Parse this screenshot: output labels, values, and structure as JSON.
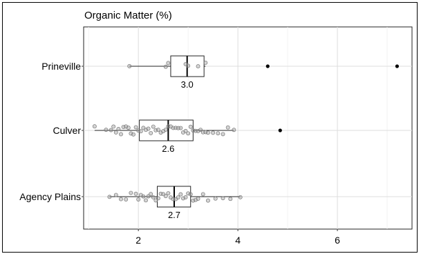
{
  "chart_data": {
    "type": "boxplot",
    "title": "Organic Matter (%)",
    "xlabel": "",
    "ylabel": "",
    "xlim": [
      0.9,
      7.5
    ],
    "xticks": [
      2,
      4,
      6
    ],
    "xtick_labels": [
      "2",
      "4",
      "6"
    ],
    "grid": true,
    "categories": [
      "Prineville",
      "Culver",
      "Agency Plains"
    ],
    "series": [
      {
        "label": "Prineville",
        "median_label": "3.0",
        "q1": 2.65,
        "median": 2.98,
        "q3": 3.32,
        "whisker_low": 1.82,
        "whisker_high": 3.35,
        "outliers": [
          4.6,
          7.2
        ],
        "points": [
          1.82,
          2.55,
          2.6,
          2.95,
          3.0,
          3.2,
          3.35
        ]
      },
      {
        "label": "Culver",
        "median_label": "2.6",
        "q1": 2.02,
        "median": 2.6,
        "q3": 3.1,
        "whisker_low": 1.12,
        "whisker_high": 3.92,
        "outliers": [
          4.85
        ],
        "points": [
          1.12,
          1.35,
          1.45,
          1.5,
          1.55,
          1.6,
          1.65,
          1.7,
          1.75,
          1.8,
          1.85,
          1.9,
          1.95,
          2.0,
          2.05,
          2.1,
          2.15,
          2.2,
          2.25,
          2.3,
          2.35,
          2.4,
          2.45,
          2.5,
          2.55,
          2.6,
          2.65,
          2.7,
          2.75,
          2.8,
          2.85,
          2.9,
          2.95,
          3.0,
          3.05,
          3.1,
          3.15,
          3.2,
          3.25,
          3.3,
          3.35,
          3.4,
          3.5,
          3.6,
          3.7,
          3.8,
          3.92
        ]
      },
      {
        "label": "Agency Plains",
        "median_label": "2.7",
        "q1": 2.38,
        "median": 2.72,
        "q3": 3.05,
        "whisker_low": 1.42,
        "whisker_high": 4.05,
        "outliers": [],
        "points": [
          1.42,
          1.55,
          1.65,
          1.75,
          1.85,
          1.95,
          2.0,
          2.05,
          2.1,
          2.15,
          2.2,
          2.25,
          2.3,
          2.35,
          2.4,
          2.45,
          2.5,
          2.55,
          2.6,
          2.65,
          2.7,
          2.75,
          2.8,
          2.85,
          2.9,
          2.95,
          3.0,
          3.05,
          3.1,
          3.15,
          3.2,
          3.3,
          3.4,
          3.55,
          3.7,
          3.85,
          4.05
        ]
      }
    ]
  }
}
